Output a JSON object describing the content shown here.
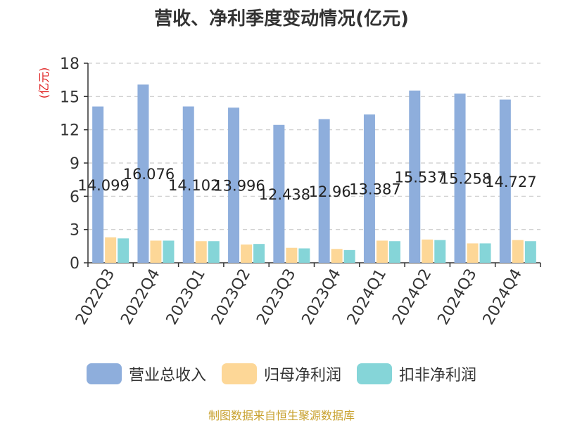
{
  "chart_data": {
    "type": "bar",
    "title": "营收、净利季度变动情况(亿元)",
    "ylabel": "(亿元)",
    "ylim": [
      0,
      18
    ],
    "yticks": [
      0,
      3,
      6,
      9,
      12,
      15,
      18
    ],
    "categories": [
      "2022Q3",
      "2022Q4",
      "2023Q1",
      "2023Q2",
      "2023Q3",
      "2023Q4",
      "2024Q1",
      "2024Q2",
      "2024Q3",
      "2024Q4"
    ],
    "series": [
      {
        "name": "营业总收入",
        "color": "#8eaedc",
        "values": [
          14.099,
          16.076,
          14.102,
          13.996,
          12.438,
          12.96,
          13.387,
          15.537,
          15.258,
          14.727
        ],
        "data_labels": [
          "14.099",
          "16.076",
          "14.102",
          "13.996",
          "12.438",
          "12.96",
          "13.387",
          "15.537",
          "15.258",
          "14.727"
        ]
      },
      {
        "name": "归母净利润",
        "color": "#fdd797",
        "values": [
          2.3,
          2.0,
          1.95,
          1.65,
          1.35,
          1.25,
          2.0,
          2.1,
          1.75,
          2.05
        ]
      },
      {
        "name": "扣非净利润",
        "color": "#85d5d8",
        "values": [
          2.2,
          2.0,
          1.95,
          1.7,
          1.3,
          1.15,
          1.95,
          2.05,
          1.75,
          1.95
        ]
      }
    ],
    "grid": true,
    "legend_position": "bottom"
  },
  "source_text": "制图数据来自恒生聚源数据库"
}
